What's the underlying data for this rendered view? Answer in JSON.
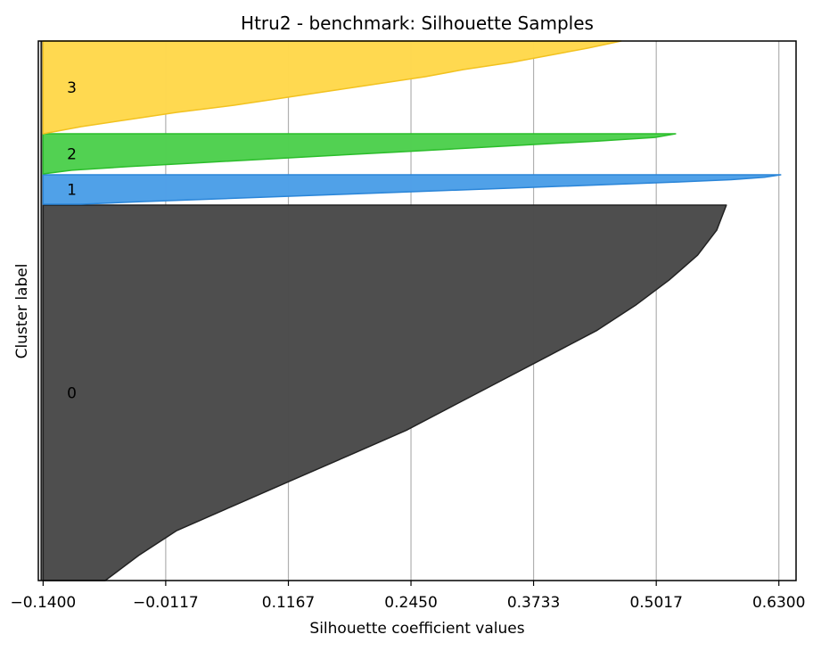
{
  "chart_data": {
    "type": "area",
    "title": "Htru2 - benchmark: Silhouette Samples",
    "xlabel": "Silhouette coefficient values",
    "ylabel": "Cluster label",
    "xlim": [
      -0.145,
      0.648
    ],
    "xticks": [
      -0.14,
      -0.0117,
      0.1167,
      0.245,
      0.3733,
      0.5017,
      0.63
    ],
    "xtick_labels": [
      "−0.1400",
      "−0.0117",
      "0.1167",
      "0.2450",
      "0.3733",
      "0.5017",
      "0.6300"
    ],
    "grid_x": true,
    "reference_line_x": -0.14,
    "clusters": [
      {
        "label": "0",
        "color": "#4a4a4a",
        "edge": "#222222",
        "values_sorted_desc": [
          0.575,
          0.565,
          0.545,
          0.515,
          0.48,
          0.44,
          0.39,
          0.34,
          0.29,
          0.24,
          0.18,
          0.12,
          0.06,
          0.0,
          -0.04,
          -0.075
        ]
      },
      {
        "label": "1",
        "color": "#4c9fe8",
        "edge": "#2a85d8",
        "values_sorted_desc": [
          0.632,
          0.615,
          0.58,
          0.52,
          0.45,
          0.38,
          0.31,
          0.24,
          0.17,
          0.1,
          0.03,
          -0.04,
          -0.1
        ]
      },
      {
        "label": "2",
        "color": "#4fd04f",
        "edge": "#2bbd2b",
        "values_sorted_desc": [
          0.522,
          0.5,
          0.44,
          0.37,
          0.3,
          0.23,
          0.16,
          0.09,
          0.02,
          -0.05,
          -0.11,
          -0.14
        ]
      },
      {
        "label": "3",
        "color": "#ffd84d",
        "edge": "#f2c21f",
        "values_sorted_desc": [
          0.465,
          0.43,
          0.39,
          0.35,
          0.3,
          0.26,
          0.21,
          0.16,
          0.11,
          0.06,
          0.0,
          -0.05,
          -0.1,
          -0.14
        ]
      }
    ]
  }
}
